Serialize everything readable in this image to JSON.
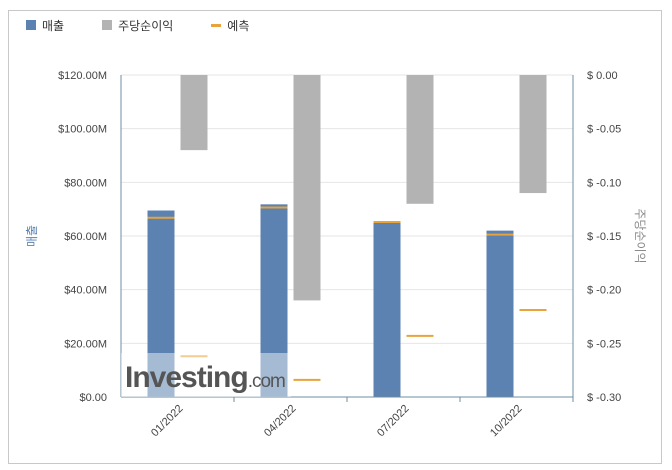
{
  "legend": {
    "revenue": "매출",
    "eps": "주당순이익",
    "forecast": "예측"
  },
  "colors": {
    "revenue": "#5b82b0",
    "eps": "#b3b3b3",
    "forecast": "#e8a33a",
    "axis": "#6e8fa5",
    "grid": "#e6e6e6"
  },
  "watermark": {
    "main": "Investing",
    "suffix": ".com"
  },
  "chart_data": {
    "type": "bar",
    "categories": [
      "01/2022",
      "04/2022",
      "07/2022",
      "10/2022"
    ],
    "left_axis": {
      "title": "매출",
      "min": 0,
      "max": 120,
      "ticks": [
        "$0.00",
        "$20.00M",
        "$40.00M",
        "$60.00M",
        "$80.00M",
        "$100.00M",
        "$120.00M"
      ]
    },
    "right_axis": {
      "title": "주당순이익",
      "min": -0.3,
      "max": 0.0,
      "ticks": [
        "$ 0.00",
        "$ -0.05",
        "$ -0.10",
        "$ -0.15",
        "$ -0.20",
        "$ -0.25",
        "$ -0.30"
      ]
    },
    "series": [
      {
        "name": "매출",
        "unit": "M USD",
        "values": [
          69.5,
          71.8,
          65.5,
          62.0
        ],
        "forecast": [
          66.8,
          70.6,
          65.2,
          60.5
        ]
      },
      {
        "name": "주당순이익",
        "unit": "USD",
        "values": [
          -0.07,
          -0.21,
          -0.12,
          -0.11
        ],
        "forecast": [
          -0.262,
          -0.284,
          -0.243,
          -0.219
        ]
      }
    ]
  }
}
